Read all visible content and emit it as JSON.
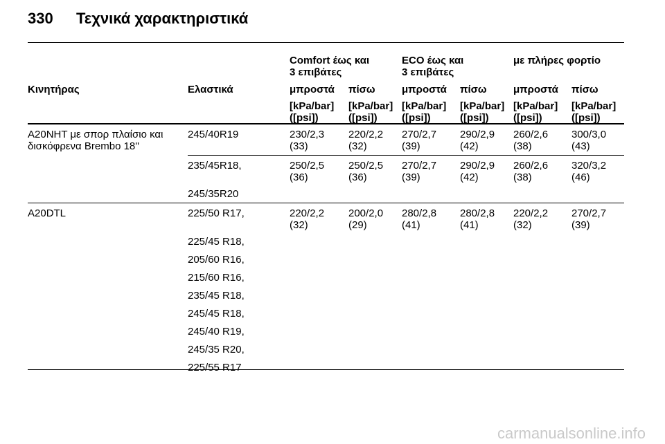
{
  "page": {
    "number": "330",
    "title": "Τεχνικά χαρακτηριστικά"
  },
  "groups": [
    {
      "line1": "Comfort έως και",
      "line2": "3 επιβάτες"
    },
    {
      "line1": "ECO έως και",
      "line2": "3 επιβάτες"
    },
    {
      "line1": "με πλήρες φορτίο",
      "line2": ""
    }
  ],
  "columns": {
    "engine": "Κινητήρας",
    "tyres": "Ελαστικά",
    "front": "μπροστά",
    "rear": "πίσω"
  },
  "units": {
    "line1": "[kPa/bar]",
    "line2": "([psi])"
  },
  "rows": [
    {
      "engine_line1": "A20NHT με σπορ πλαίσιο και",
      "engine_line2": "δισκόφρενα Brembo 18''",
      "tyre": "245/40R19",
      "values": [
        [
          "230/2,3",
          "(33)"
        ],
        [
          "220/2,2",
          "(32)"
        ],
        [
          "270/2,7",
          "(39)"
        ],
        [
          "290/2,9",
          "(42)"
        ],
        [
          "260/2,6",
          "(38)"
        ],
        [
          "300/3,0",
          "(43)"
        ]
      ]
    },
    {
      "tyre": "235/45R18,",
      "tyre_extra": "245/35R20",
      "values": [
        [
          "250/2,5",
          "(36)"
        ],
        [
          "250/2,5",
          "(36)"
        ],
        [
          "270/2,7",
          "(39)"
        ],
        [
          "290/2,9",
          "(42)"
        ],
        [
          "260/2,6",
          "(38)"
        ],
        [
          "320/3,2",
          "(46)"
        ]
      ]
    },
    {
      "engine_line1": "A20DTL",
      "tyres": [
        "225/50 R17,",
        "225/45 R18,",
        "205/60 R16,",
        "215/60 R16,",
        "235/45 R18,",
        "245/45 R18,",
        "245/40 R19,",
        "245/35 R20,",
        "225/55 R17"
      ],
      "values": [
        [
          "220/2,2",
          "(32)"
        ],
        [
          "200/2,0",
          "(29)"
        ],
        [
          "280/2,8",
          "(41)"
        ],
        [
          "280/2,8",
          "(41)"
        ],
        [
          "220/2,2",
          "(32)"
        ],
        [
          "270/2,7",
          "(39)"
        ]
      ]
    }
  ],
  "watermark": "carmanualsonline.info"
}
